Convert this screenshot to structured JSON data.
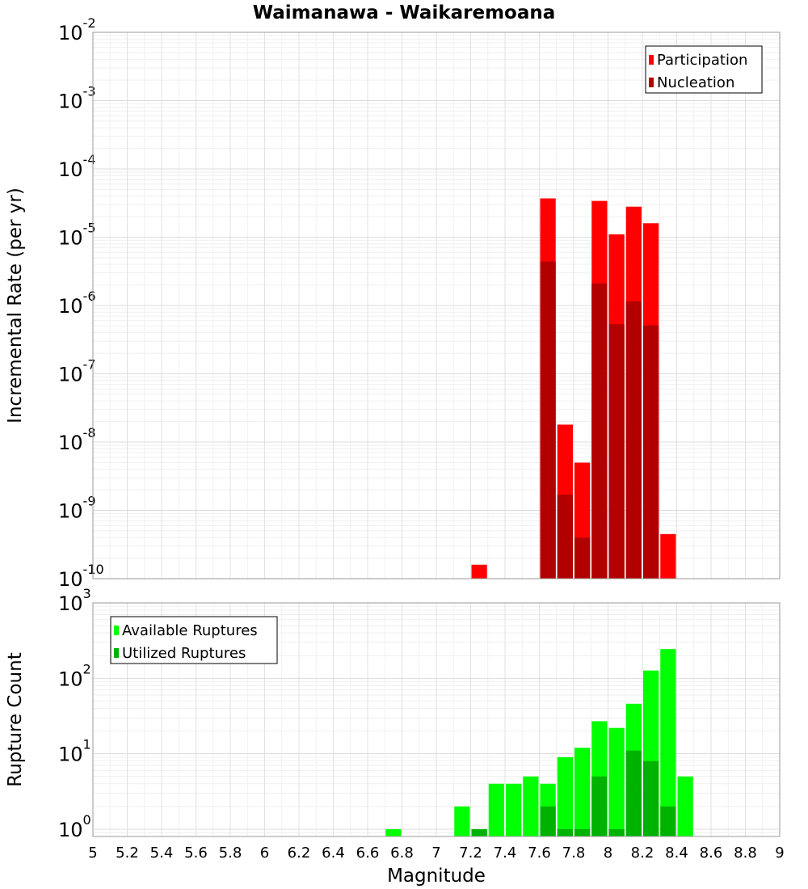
{
  "chart_data": {
    "type": "bar",
    "title": "Waimanawa - Waikaremoana",
    "xlabel": "Magnitude",
    "x_ticks": [
      "5",
      "5.2",
      "5.4",
      "5.6",
      "5.8",
      "6",
      "6.2",
      "6.4",
      "6.6",
      "6.8",
      "7",
      "7.2",
      "7.4",
      "7.6",
      "7.8",
      "8",
      "8.2",
      "8.4",
      "8.6",
      "8.8",
      "9"
    ],
    "xlim": [
      5,
      9
    ],
    "grid": true,
    "panels": [
      {
        "ylabel": "Incremental Rate (per yr)",
        "yscale": "log",
        "ylim": [
          1e-10,
          0.01
        ],
        "y_tick_exponents": [
          -10,
          -9,
          -8,
          -7,
          -6,
          -5,
          -4,
          -3,
          -2
        ],
        "legend_position": "top-right",
        "series": [
          {
            "name": "Participation",
            "color": "#ff0000",
            "points": [
              {
                "x": 7.25,
                "y": 1.6e-10
              },
              {
                "x": 7.65,
                "y": 3.7e-05
              },
              {
                "x": 7.75,
                "y": 1.8e-08
              },
              {
                "x": 7.85,
                "y": 5e-09
              },
              {
                "x": 7.95,
                "y": 3.4e-05
              },
              {
                "x": 8.05,
                "y": 1.1e-05
              },
              {
                "x": 8.15,
                "y": 2.8e-05
              },
              {
                "x": 8.25,
                "y": 1.6e-05
              },
              {
                "x": 8.35,
                "y": 4.5e-10
              }
            ]
          },
          {
            "name": "Nucleation",
            "color": "#b20000",
            "points": [
              {
                "x": 7.65,
                "y": 4.4e-06
              },
              {
                "x": 7.75,
                "y": 1.7e-09
              },
              {
                "x": 7.85,
                "y": 4e-10
              },
              {
                "x": 7.95,
                "y": 2.1e-06
              },
              {
                "x": 8.05,
                "y": 5.3e-07
              },
              {
                "x": 8.15,
                "y": 1.15e-06
              },
              {
                "x": 8.25,
                "y": 5.1e-07
              }
            ]
          }
        ]
      },
      {
        "ylabel": "Rupture Count",
        "yscale": "log",
        "ylim": [
          0.8,
          1000
        ],
        "y_tick_exponents": [
          0,
          1,
          2,
          3
        ],
        "legend_position": "top-left",
        "series": [
          {
            "name": "Available Ruptures",
            "color": "#00ff00",
            "points": [
              {
                "x": 6.75,
                "y": 1
              },
              {
                "x": 7.15,
                "y": 2
              },
              {
                "x": 7.25,
                "y": 1
              },
              {
                "x": 7.35,
                "y": 4
              },
              {
                "x": 7.45,
                "y": 4
              },
              {
                "x": 7.55,
                "y": 5
              },
              {
                "x": 7.65,
                "y": 4
              },
              {
                "x": 7.75,
                "y": 9
              },
              {
                "x": 7.85,
                "y": 12
              },
              {
                "x": 7.95,
                "y": 27
              },
              {
                "x": 8.05,
                "y": 22
              },
              {
                "x": 8.15,
                "y": 46
              },
              {
                "x": 8.25,
                "y": 127
              },
              {
                "x": 8.35,
                "y": 244
              },
              {
                "x": 8.45,
                "y": 5
              }
            ]
          },
          {
            "name": "Utilized Ruptures",
            "color": "#00b200",
            "points": [
              {
                "x": 7.25,
                "y": 1
              },
              {
                "x": 7.65,
                "y": 2
              },
              {
                "x": 7.75,
                "y": 1
              },
              {
                "x": 7.85,
                "y": 1
              },
              {
                "x": 7.95,
                "y": 5
              },
              {
                "x": 8.05,
                "y": 1
              },
              {
                "x": 8.15,
                "y": 11
              },
              {
                "x": 8.25,
                "y": 8
              },
              {
                "x": 8.35,
                "y": 2
              }
            ]
          }
        ]
      }
    ]
  }
}
